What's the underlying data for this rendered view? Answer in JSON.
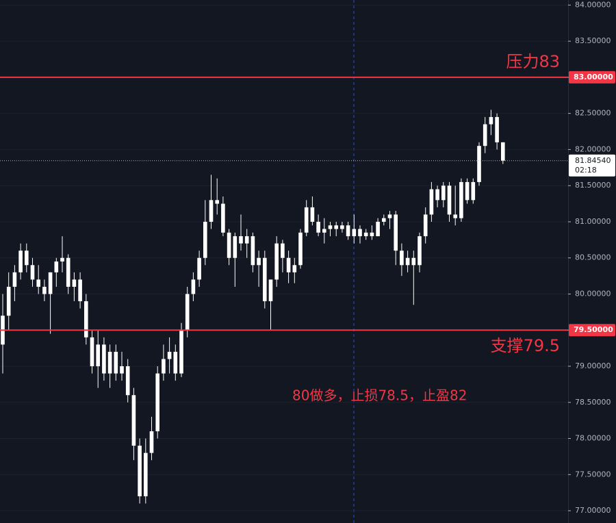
{
  "chart_data": {
    "type": "candlestick",
    "ylim": [
      76.83,
      84.07
    ],
    "yticks": [
      {
        "value": 84,
        "label": "84.00000"
      },
      {
        "value": 83.5,
        "label": "83.50000"
      },
      {
        "value": 83,
        "label": "83.00000"
      },
      {
        "value": 82.5,
        "label": "82.50000"
      },
      {
        "value": 82,
        "label": "82.00000"
      },
      {
        "value": 81.5,
        "label": "81.50000"
      },
      {
        "value": 81,
        "label": "81.00000"
      },
      {
        "value": 80.5,
        "label": "80.50000"
      },
      {
        "value": 80,
        "label": "80.00000"
      },
      {
        "value": 79.5,
        "label": "79.50000"
      },
      {
        "value": 79,
        "label": "79.00000"
      },
      {
        "value": 78.5,
        "label": "78.50000"
      },
      {
        "value": 78,
        "label": "78.00000"
      },
      {
        "value": 77.5,
        "label": "77.50000"
      },
      {
        "value": 77,
        "label": "77.00000"
      }
    ],
    "grid": true,
    "color": "#ffffff",
    "open": [
      79.3,
      79.7,
      80.1,
      80.3,
      80.6,
      80.4,
      80.2,
      80.1,
      80.0,
      80.3,
      80.45,
      80.5,
      80.1,
      80.2,
      79.9,
      79.4,
      79.0,
      79.3,
      78.9,
      79.2,
      78.9,
      79.0,
      78.6,
      77.9,
      77.2,
      77.8,
      78.1,
      78.9,
      79.1,
      79.2,
      78.9,
      79.5,
      80.0,
      80.2,
      80.5,
      81.0,
      81.3,
      81.25,
      80.85,
      80.5,
      80.8,
      80.7,
      80.8,
      80.4,
      80.5,
      79.9,
      80.2,
      80.7,
      80.5,
      80.3,
      80.4,
      80.85,
      81.2,
      81.0,
      80.85,
      80.9,
      80.95,
      80.9,
      80.95,
      80.8,
      80.9,
      80.8,
      80.85,
      80.8,
      81.0,
      81.05,
      81.1,
      80.6,
      80.4,
      80.5,
      80.4,
      80.8,
      81.1,
      81.45,
      81.3,
      81.5,
      81.1,
      81.05,
      81.55,
      81.3,
      81.55,
      82.05,
      82.35,
      82.45,
      82.1
    ],
    "high": [
      80.0,
      80.3,
      80.4,
      80.7,
      80.7,
      80.5,
      80.4,
      80.2,
      80.3,
      80.5,
      80.8,
      80.55,
      80.3,
      80.3,
      80.0,
      79.5,
      79.5,
      79.4,
      79.3,
      79.3,
      79.2,
      79.1,
      78.7,
      78.0,
      78.0,
      78.3,
      79.0,
      79.3,
      79.4,
      79.3,
      79.6,
      80.1,
      80.3,
      80.6,
      81.3,
      81.65,
      81.6,
      81.35,
      80.9,
      80.85,
      81.1,
      80.9,
      80.85,
      80.6,
      80.6,
      80.2,
      80.8,
      80.75,
      80.6,
      80.5,
      80.9,
      81.3,
      81.35,
      81.1,
      81.05,
      81.0,
      81.0,
      81.0,
      81.0,
      81.1,
      80.95,
      80.9,
      80.95,
      81.05,
      81.1,
      81.15,
      81.15,
      80.7,
      80.6,
      80.6,
      80.85,
      81.2,
      81.55,
      81.5,
      81.55,
      81.55,
      81.5,
      81.6,
      81.6,
      81.6,
      82.1,
      82.45,
      82.55,
      82.5,
      82.1
    ],
    "low": [
      78.9,
      79.5,
      79.9,
      80.2,
      80.3,
      80.1,
      80.0,
      79.9,
      79.45,
      80.1,
      80.3,
      80.0,
      79.9,
      79.8,
      79.3,
      78.9,
      78.7,
      78.8,
      78.7,
      78.8,
      78.8,
      78.5,
      77.7,
      77.1,
      77.1,
      77.7,
      78.0,
      78.8,
      78.9,
      78.8,
      78.85,
      79.4,
      79.9,
      80.1,
      80.4,
      80.9,
      81.1,
      80.8,
      80.4,
      80.1,
      80.6,
      80.5,
      80.3,
      80.1,
      79.8,
      79.5,
      80.1,
      80.3,
      80.15,
      80.15,
      80.35,
      80.8,
      80.95,
      80.8,
      80.7,
      80.8,
      80.8,
      80.85,
      80.75,
      80.7,
      80.7,
      80.75,
      80.75,
      80.8,
      80.95,
      80.9,
      80.4,
      80.25,
      80.3,
      79.85,
      80.3,
      80.7,
      81.0,
      81.2,
      81.2,
      81.0,
      80.95,
      81.0,
      81.25,
      81.25,
      81.5,
      81.95,
      82.2,
      82.0,
      81.8
    ],
    "close": [
      79.7,
      80.1,
      80.3,
      80.6,
      80.4,
      80.2,
      80.1,
      80.0,
      80.3,
      80.45,
      80.5,
      80.1,
      80.2,
      79.9,
      79.4,
      79.0,
      79.3,
      78.9,
      79.2,
      78.9,
      79.0,
      78.6,
      77.9,
      77.2,
      77.8,
      78.1,
      78.9,
      79.1,
      79.2,
      78.9,
      79.5,
      80.0,
      80.2,
      80.5,
      81.0,
      81.3,
      81.25,
      80.85,
      80.5,
      80.8,
      80.7,
      80.8,
      80.4,
      80.5,
      79.9,
      80.2,
      80.7,
      80.5,
      80.3,
      80.4,
      80.85,
      81.2,
      81.0,
      80.85,
      80.9,
      80.95,
      80.9,
      80.95,
      80.8,
      80.9,
      80.8,
      80.85,
      80.8,
      81.0,
      81.05,
      81.1,
      80.6,
      80.4,
      80.5,
      80.4,
      80.8,
      81.1,
      81.45,
      81.3,
      81.5,
      81.1,
      81.05,
      81.55,
      81.3,
      81.55,
      82.05,
      82.35,
      82.45,
      82.1,
      81.8454
    ],
    "levels": [
      {
        "value": 83,
        "label": "83.00000",
        "text": "压力83",
        "color": "#f23645"
      },
      {
        "value": 79.5,
        "label": "79.50000",
        "text": "支撑79.5",
        "color": "#f23645"
      }
    ],
    "last_price": {
      "value": 81.8454,
      "label": "81.84540",
      "countdown": "02:18"
    },
    "annotation": "80做多，止损78.5，止盈82",
    "annotation_color": "#f23645"
  }
}
